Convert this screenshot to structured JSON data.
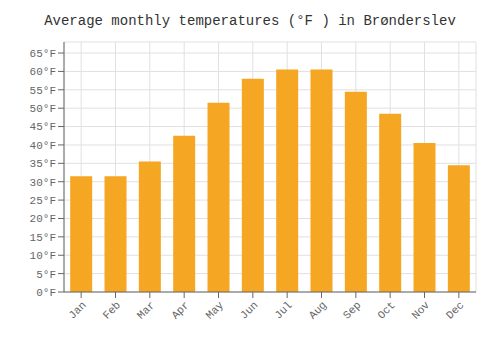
{
  "chart_data": {
    "type": "bar",
    "title": "Average monthly temperatures (°F ) in Brønderslev",
    "categories": [
      "Jan",
      "Feb",
      "Mar",
      "Apr",
      "May",
      "Jun",
      "Jul",
      "Aug",
      "Sep",
      "Oct",
      "Nov",
      "Dec"
    ],
    "values": [
      31.5,
      31.5,
      35.5,
      42.5,
      51.5,
      58.0,
      60.5,
      60.5,
      54.5,
      48.5,
      40.5,
      34.5
    ],
    "color": "#F5A623",
    "ylim": [
      0,
      68
    ],
    "yticks": [
      {
        "value": 0,
        "label": "0°F"
      },
      {
        "value": 5,
        "label": "5°F"
      },
      {
        "value": 10,
        "label": "10°F"
      },
      {
        "value": 15,
        "label": "15°F"
      },
      {
        "value": 20,
        "label": "20°F"
      },
      {
        "value": 25,
        "label": "25°F"
      },
      {
        "value": 30,
        "label": "30°F"
      },
      {
        "value": 35,
        "label": "35°F"
      },
      {
        "value": 40,
        "label": "40°F"
      },
      {
        "value": 45,
        "label": "45°F"
      },
      {
        "value": 50,
        "label": "50°F"
      },
      {
        "value": 55,
        "label": "55°F"
      },
      {
        "value": 60,
        "label": "60°F"
      },
      {
        "value": 65,
        "label": "65°F"
      }
    ],
    "grid": true
  }
}
